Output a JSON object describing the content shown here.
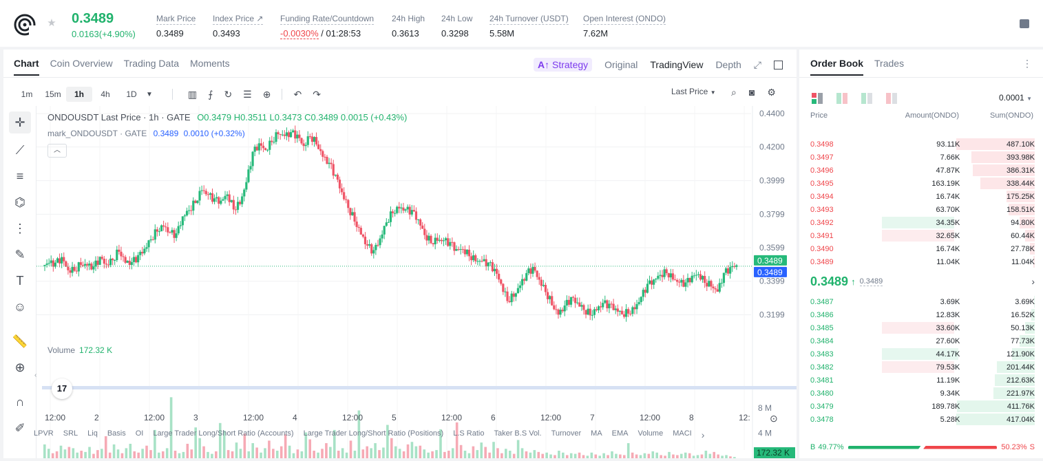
{
  "header": {
    "price": "0.3489",
    "change": "0.0163(+4.90%)",
    "stats": [
      {
        "label": "Mark Price",
        "value": "0.3489"
      },
      {
        "label": "Index Price ↗",
        "value": "0.3493"
      },
      {
        "label": "Funding Rate/Countdown",
        "value_red": "-0.0030%",
        "value": " / 01:28:53"
      },
      {
        "label": "24h High",
        "value": "0.3613"
      },
      {
        "label": "24h Low",
        "value": "0.3298"
      },
      {
        "label": "24h Turnover (USDT)",
        "value": "5.58M"
      },
      {
        "label": "Open Interest (ONDO)",
        "value": "7.62M"
      }
    ]
  },
  "chart_panel": {
    "tabs": [
      "Chart",
      "Coin Overview",
      "Trading Data",
      "Moments"
    ],
    "views": {
      "strategy": "Strategy",
      "original": "Original",
      "tradingview": "TradingView",
      "depth": "Depth"
    },
    "timeframes": [
      "1m",
      "15m",
      "1h",
      "4h",
      "1D"
    ],
    "active_timeframe": "1h",
    "price_type": "Last Price",
    "legend": {
      "symbol": "ONDOUSDT Last Price · 1h · GATE",
      "o": "O0.3479",
      "h": "H0.3511",
      "l": "L0.3473",
      "c": "C0.3489",
      "chg": "0.0015 (+0.43%)",
      "mark": "mark_ONDOUSDT · GATE",
      "mark_value": "0.3489",
      "mark_chg": "0.0010 (+0.32%)"
    },
    "volume_label": "Volume",
    "volume_value": "172.32 K",
    "tv_logo": "17",
    "bottom_indicators": [
      "LPVR",
      "SRL",
      "Liq",
      "Basis",
      "OI",
      "Large Trader Long/Short Ratio (Accounts)",
      "Large Trader Long/Short Ratio (Positions)",
      "L.S Ratio",
      "Taker B.S Vol.",
      "Turnover",
      "MA",
      "EMA",
      "Volume",
      "MACI"
    ],
    "colors": {
      "up": "#26b97a",
      "down": "#ef5466",
      "markline": "#2962ff"
    }
  },
  "chart_data": {
    "type": "candlestick",
    "y_ticks": [
      "0.4400",
      "0.4200",
      "0.3999",
      "0.3799",
      "0.3599",
      "0.3399",
      "0.3199"
    ],
    "ylim": [
      0.309,
      0.4445
    ],
    "x_ticks": [
      "12:00",
      "2",
      "12:00",
      "3",
      "12:00",
      "4",
      "12:00",
      "5",
      "12:00",
      "6",
      "12:00",
      "7",
      "12:00",
      "8",
      "12:"
    ],
    "last_price_tag": "0.3489",
    "mark_price_tag": "0.3489",
    "volume_ticks": [
      "8 M",
      "4 M"
    ],
    "volume_last_tag": "172.32 K",
    "path_closes": [
      0.351,
      0.349,
      0.352,
      0.346,
      0.348,
      0.352,
      0.35,
      0.347,
      0.352,
      0.349,
      0.354,
      0.36,
      0.352,
      0.35,
      0.353,
      0.358,
      0.366,
      0.372,
      0.374,
      0.368,
      0.366,
      0.377,
      0.383,
      0.389,
      0.396,
      0.391,
      0.387,
      0.386,
      0.392,
      0.385,
      0.388,
      0.399,
      0.415,
      0.42,
      0.418,
      0.425,
      0.43,
      0.427,
      0.427,
      0.425,
      0.42,
      0.428,
      0.424,
      0.415,
      0.409,
      0.401,
      0.392,
      0.385,
      0.378,
      0.369,
      0.36,
      0.356,
      0.364,
      0.376,
      0.383,
      0.385,
      0.382,
      0.38,
      0.375,
      0.368,
      0.365,
      0.366,
      0.364,
      0.361,
      0.357,
      0.359,
      0.357,
      0.354,
      0.352,
      0.349,
      0.345,
      0.338,
      0.33,
      0.333,
      0.338,
      0.343,
      0.346,
      0.34,
      0.335,
      0.328,
      0.321,
      0.324,
      0.328,
      0.326,
      0.324,
      0.322,
      0.324,
      0.326,
      0.324,
      0.322,
      0.321,
      0.323,
      0.325,
      0.33,
      0.336,
      0.339,
      0.344,
      0.347,
      0.343,
      0.339,
      0.337,
      0.341,
      0.344,
      0.341,
      0.339,
      0.334,
      0.343,
      0.346,
      0.3489
    ],
    "volumes_m": [
      2.2,
      1.5,
      0.8,
      1.1,
      2.0,
      1.4,
      1.8,
      1.6,
      0.9,
      1.2,
      1.0,
      1.8,
      0.7,
      1.3,
      1.5,
      3.5,
      0.9,
      2.2,
      1.4,
      0.8,
      1.6,
      2.3,
      1.1,
      0.9,
      1.5,
      2.0,
      1.3,
      4.5,
      0.9,
      1.1,
      1.6,
      9.7,
      1.2,
      0.8,
      1.0,
      2.3,
      1.4,
      4.9,
      3.2,
      1.9,
      1.0,
      0.7,
      1.1,
      5.6,
      4.4,
      1.3,
      1.1,
      2.5,
      1.5,
      3.9,
      1.1,
      2.4,
      1.7,
      0.9,
      1.6,
      2.8,
      1.5,
      1.2,
      1.9,
      3.8,
      2.0,
      0.8,
      1.4,
      1.1,
      4.1,
      3.0,
      1.2,
      0.9,
      1.5,
      2.4,
      1.8,
      4.5,
      1.2,
      1.6,
      0.9,
      2.8,
      1.2,
      7.6,
      1.4,
      1.9,
      1.6,
      2.4,
      1.3,
      1.7,
      5.3,
      3.2,
      1.9,
      1.5,
      1.1,
      2.2,
      2.6,
      1.9,
      2.0,
      1.4,
      0.9,
      1.1,
      1.3,
      4.6,
      1.0,
      1.2,
      1.6,
      5.7,
      2.1,
      1.2,
      0.8,
      1.9,
      1.3,
      2.5,
      1.8,
      0.9,
      2.6,
      1.6,
      0.8,
      1.5,
      1.2,
      0.7,
      2.9,
      1.6,
      1.1,
      0.9,
      1.3,
      1.0,
      0.7,
      0.9,
      0.6,
      0.5,
      1.2,
      0.9,
      0.5,
      0.8,
      0.7,
      0.9,
      0.5,
      0.4,
      0.9,
      0.6,
      0.4,
      0.8,
      0.5,
      1.1,
      0.7,
      0.6,
      0.5,
      2.4,
      0.9,
      0.6,
      0.5,
      0.8,
      0.7,
      1.1,
      0.9,
      0.5,
      0.4,
      1.0,
      0.6,
      0.5,
      0.7,
      0.9,
      0.8,
      0.4,
      0.5,
      0.6,
      1.2,
      0.7,
      1.0,
      0.6,
      0.4,
      0.5,
      0.3,
      0.2
    ]
  },
  "order_book": {
    "tabs": [
      "Order Book",
      "Trades"
    ],
    "precision": "0.0001",
    "headers": [
      "Price",
      "Amount(ONDO)",
      "Sum(ONDO)"
    ],
    "asks": [
      {
        "price": "0.3498",
        "amount": "93.11K",
        "sum": "487.10K",
        "sum_frac": 1.0,
        "amt_frac": 0
      },
      {
        "price": "0.3497",
        "amount": "7.66K",
        "sum": "393.98K",
        "sum_frac": 0.81,
        "amt_frac": 0
      },
      {
        "price": "0.3496",
        "amount": "47.87K",
        "sum": "386.31K",
        "sum_frac": 0.79,
        "amt_frac": 0
      },
      {
        "price": "0.3495",
        "amount": "163.19K",
        "sum": "338.44K",
        "sum_frac": 0.69,
        "amt_frac": 0
      },
      {
        "price": "0.3494",
        "amount": "16.74K",
        "sum": "175.25K",
        "sum_frac": 0.36,
        "amt_frac": 0
      },
      {
        "price": "0.3493",
        "amount": "63.70K",
        "sum": "158.51K",
        "sum_frac": 0.33,
        "amt_frac": 0
      },
      {
        "price": "0.3492",
        "amount": "34.35K",
        "sum": "94.80K",
        "sum_frac": 0.19,
        "amt_frac": 0.36
      },
      {
        "price": "0.3491",
        "amount": "32.65K",
        "sum": "60.44K",
        "sum_frac": 0.12,
        "amt_frac": 0.36
      },
      {
        "price": "0.3490",
        "amount": "16.74K",
        "sum": "27.78K",
        "sum_frac": 0.06,
        "amt_frac": 0
      },
      {
        "price": "0.3489",
        "amount": "11.04K",
        "sum": "11.04K",
        "sum_frac": 0.02,
        "amt_frac": 0
      }
    ],
    "mid_price": "0.3489",
    "mid_arrow": "↑",
    "mid_mark": "0.3489",
    "bids": [
      {
        "price": "0.3487",
        "amount": "3.69K",
        "sum": "3.69K",
        "sum_frac": 0.01,
        "amt_frac": 0
      },
      {
        "price": "0.3486",
        "amount": "12.83K",
        "sum": "16.52K",
        "sum_frac": 0.04,
        "amt_frac": 0
      },
      {
        "price": "0.3485",
        "amount": "33.60K",
        "sum": "50.13K",
        "sum_frac": 0.12,
        "amt_frac": 0.36,
        "amt_red": true
      },
      {
        "price": "0.3484",
        "amount": "27.60K",
        "sum": "77.73K",
        "sum_frac": 0.19,
        "amt_frac": 0
      },
      {
        "price": "0.3483",
        "amount": "44.17K",
        "sum": "121.90K",
        "sum_frac": 0.29,
        "amt_frac": 0.38
      },
      {
        "price": "0.3482",
        "amount": "79.53K",
        "sum": "201.44K",
        "sum_frac": 0.48,
        "amt_frac": 0.36,
        "amt_red": true
      },
      {
        "price": "0.3481",
        "amount": "11.19K",
        "sum": "212.63K",
        "sum_frac": 0.51,
        "amt_frac": 0
      },
      {
        "price": "0.3480",
        "amount": "9.34K",
        "sum": "221.97K",
        "sum_frac": 0.53,
        "amt_frac": 0
      },
      {
        "price": "0.3479",
        "amount": "189.78K",
        "sum": "411.76K",
        "sum_frac": 0.99,
        "amt_frac": 0
      },
      {
        "price": "0.3478",
        "amount": "5.28K",
        "sum": "417.04K",
        "sum_frac": 1.0,
        "amt_frac": 0
      }
    ],
    "buy_label": "B",
    "buy_pct": "49.77%",
    "sell_pct": "50.23%",
    "sell_label": "S",
    "buy_frac": 0.4977
  }
}
